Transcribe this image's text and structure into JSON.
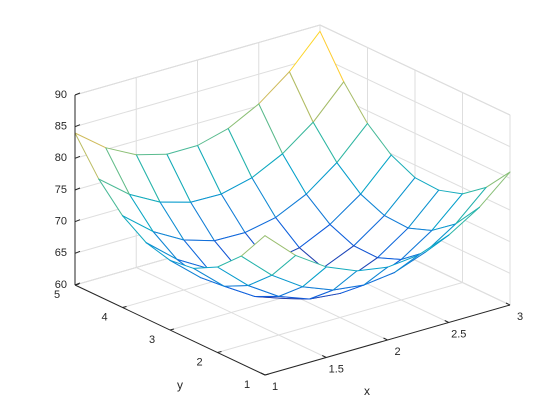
{
  "chart_data": {
    "type": "mesh",
    "x": [
      1,
      1.25,
      1.5,
      1.75,
      2,
      2.25,
      2.5,
      2.75,
      3
    ],
    "y": [
      1,
      1.5,
      2,
      2.5,
      3,
      3.5,
      4,
      4.5,
      5
    ],
    "z": [
      [
        82.0,
        77.5,
        74.3,
        72.3,
        71.5,
        72.0,
        73.8,
        76.8,
        81.0
      ],
      [
        77.0,
        72.6,
        69.4,
        67.5,
        66.9,
        67.5,
        69.3,
        72.4,
        76.8
      ],
      [
        73.5,
        69.2,
        66.1,
        64.3,
        63.8,
        64.4,
        66.4,
        69.6,
        74.0
      ],
      [
        71.5,
        67.3,
        64.3,
        62.6,
        62.1,
        62.9,
        64.9,
        68.2,
        72.8
      ],
      [
        71.0,
        66.9,
        64.0,
        62.4,
        62.0,
        62.9,
        65.0,
        68.4,
        73.0
      ],
      [
        72.0,
        68.0,
        65.2,
        63.7,
        63.4,
        64.3,
        66.6,
        70.0,
        74.8
      ],
      [
        74.5,
        70.6,
        67.9,
        66.4,
        66.3,
        67.3,
        69.6,
        73.2,
        78.0
      ],
      [
        78.5,
        74.7,
        72.1,
        70.7,
        70.6,
        71.8,
        74.2,
        77.8,
        82.8
      ],
      [
        84.0,
        80.3,
        77.8,
        76.5,
        76.5,
        77.8,
        80.3,
        84.0,
        89.0
      ]
    ],
    "xlabel": "x",
    "ylabel": "y",
    "xlim": [
      1,
      3
    ],
    "ylim": [
      1,
      5
    ],
    "zlim": [
      60,
      90
    ],
    "xticks": [
      1,
      1.5,
      2,
      2.5,
      3
    ],
    "yticks": [
      1,
      2,
      3,
      4,
      5
    ],
    "zticks": [
      60,
      65,
      70,
      75,
      80,
      85,
      90
    ],
    "grid": true,
    "colormap": [
      "#352a87",
      "#0f5cdd",
      "#1481d6",
      "#06a4ca",
      "#2eb7a4",
      "#87bf77",
      "#d1bb59",
      "#fec832",
      "#f9fb0e"
    ]
  }
}
